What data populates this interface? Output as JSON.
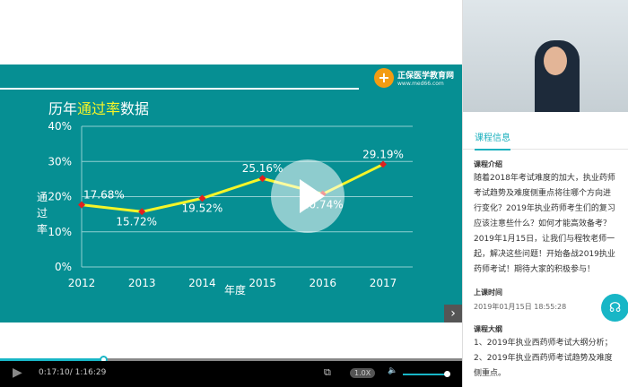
{
  "slide": {
    "title_pre": "历年",
    "title_hl": "通过率",
    "title_post": "数据",
    "logo_name": "正保医学教育网",
    "logo_url": "www.med66.com"
  },
  "chart_data": {
    "type": "line",
    "categories": [
      "2012",
      "2013",
      "2014",
      "2015",
      "2016",
      "2017"
    ],
    "values": [
      17.68,
      15.72,
      19.52,
      25.16,
      20.74,
      29.19
    ],
    "data_labels": [
      "17.68%",
      "15.72%",
      "19.52%",
      "25.16%",
      "20.74%",
      "29.19%"
    ],
    "xlabel": "年度",
    "ylabel": "通过率",
    "ylim": [
      0,
      40
    ],
    "yticks": [
      "0%",
      "10%",
      "20%",
      "30%",
      "40%"
    ],
    "grid": true,
    "line_color": "#f5f528",
    "marker_color": "#e02020"
  },
  "player": {
    "current_time": "0:17:10",
    "duration": "1:16:29",
    "progress": 0.224,
    "speed": "1.0X",
    "volume": 1.0
  },
  "side": {
    "tab": "课程信息",
    "intro_title": "课程介绍",
    "intro": "随着2018年考试难度的加大，执业药师考试趋势及难度侧重点将往哪个方向进行变化？2019年执业药师考生们的复习应该注意些什么？如何才能高效备考？2019年1月15日，让我们与程牧老师一起，解决这些问题！开始备战2019执业药师考试！期待大家的积极参与！",
    "time_title": "上课时间",
    "time": "2019年01月15日 18:55:28",
    "outline_title": "课程大纲",
    "outline": [
      "1、2019年执业西药师考试大纲分析；",
      "2、2019年执业西药师考试趋势及难度侧重点。"
    ]
  }
}
